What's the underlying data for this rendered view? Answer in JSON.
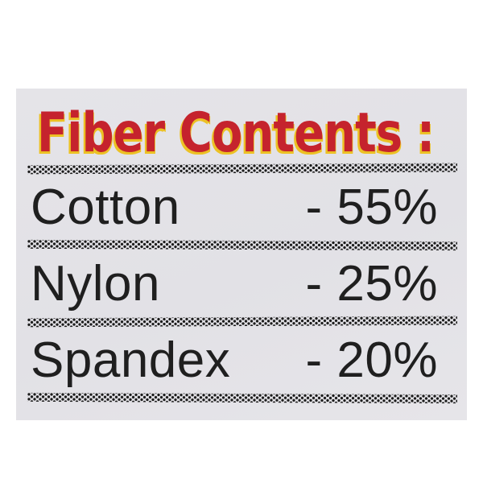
{
  "label": {
    "title": "Fiber Contents :",
    "rows": [
      {
        "name": "Cotton",
        "value": "- 55%"
      },
      {
        "name": "Nylon",
        "value": "- 25%"
      },
      {
        "name": "Spandex",
        "value": "- 20%"
      }
    ]
  },
  "theme": {
    "page_bg": "#ffffff",
    "card_bg": "#e5e4e8",
    "title_red": "#c5232d",
    "title_shadow_yellow": "#ecc124",
    "ink": "#1f1f1f",
    "dot_ink": "#1b1b1b"
  }
}
